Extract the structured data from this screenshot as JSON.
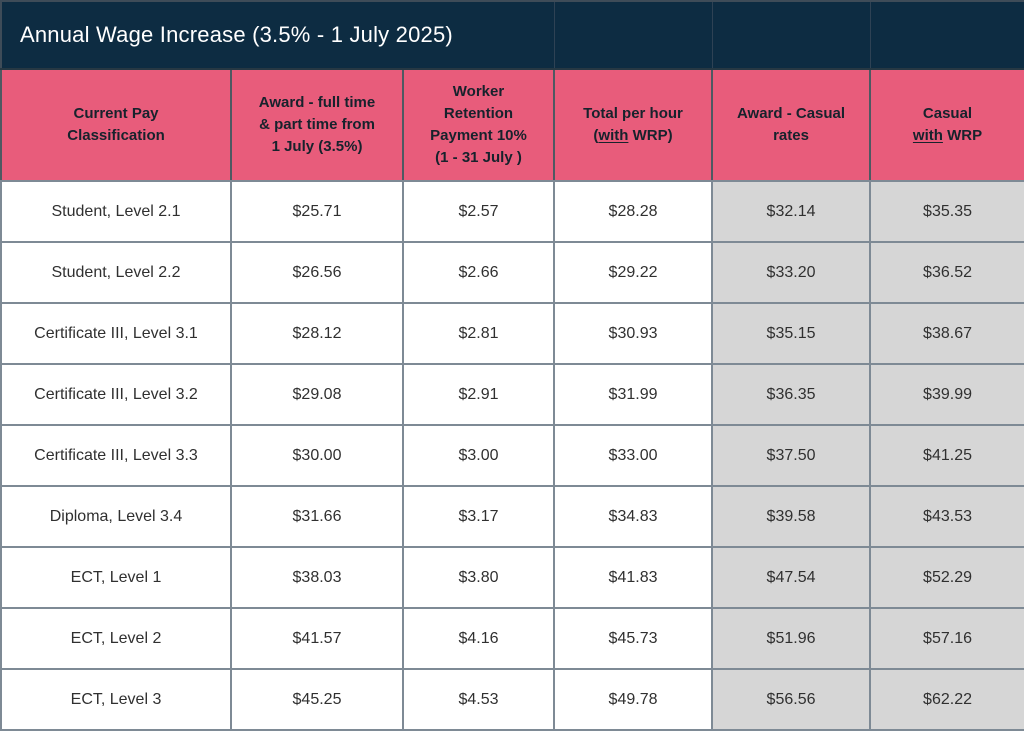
{
  "title": "Annual Wage Increase (3.5% - 1 July 2025)",
  "colors": {
    "navy": "#0d2c42",
    "navy_divider": "#2e4254",
    "pink": "#e85c7b",
    "header_text": "#17222c",
    "header_border": "#4d5962",
    "grid_border": "#7e8a95",
    "outer_border": "#3e4c58",
    "gray_cell": "#d6d6d6",
    "data_text": "#303030",
    "title_text": "#ffffff"
  },
  "table": {
    "columns": [
      {
        "id": "classification",
        "lines": [
          [
            {
              "t": "Current Pay"
            }
          ],
          [
            {
              "t": "Classification"
            }
          ]
        ]
      },
      {
        "id": "award-full-time",
        "lines": [
          [
            {
              "t": "Award - full time"
            }
          ],
          [
            {
              "t": "& part time from"
            }
          ],
          [
            {
              "t": "1 July (3.5%)"
            }
          ]
        ]
      },
      {
        "id": "worker-retention",
        "lines": [
          [
            {
              "t": "Worker"
            }
          ],
          [
            {
              "t": "Retention"
            }
          ],
          [
            {
              "t": "Payment 10%"
            }
          ],
          [
            {
              "t": "(1 - 31 July )"
            }
          ]
        ]
      },
      {
        "id": "total-with-wrp",
        "lines": [
          [
            {
              "t": "Total per hour"
            }
          ],
          [
            {
              "t": "("
            },
            {
              "t": "with",
              "u": true
            },
            {
              "t": " WRP)"
            }
          ]
        ]
      },
      {
        "id": "award-casual",
        "lines": [
          [
            {
              "t": "Award - Casual"
            }
          ],
          [
            {
              "t": "rates"
            }
          ]
        ]
      },
      {
        "id": "casual-with-wrp",
        "lines": [
          [
            {
              "t": "Casual"
            }
          ],
          [
            {
              "t": "with",
              "u": true
            },
            {
              "t": " WRP"
            }
          ]
        ]
      }
    ],
    "rows": [
      {
        "classification": "Student, Level 2.1",
        "values": [
          "$25.71",
          "$2.57",
          "$28.28",
          "$32.14",
          "$35.35"
        ]
      },
      {
        "classification": "Student, Level 2.2",
        "values": [
          "$26.56",
          "$2.66",
          "$29.22",
          "$33.20",
          "$36.52"
        ]
      },
      {
        "classification": "Certificate III, Level 3.1",
        "values": [
          "$28.12",
          "$2.81",
          "$30.93",
          "$35.15",
          "$38.67"
        ]
      },
      {
        "classification": "Certificate III, Level 3.2",
        "values": [
          "$29.08",
          "$2.91",
          "$31.99",
          "$36.35",
          "$39.99"
        ]
      },
      {
        "classification": "Certificate III, Level 3.3",
        "values": [
          "$30.00",
          "$3.00",
          "$33.00",
          "$37.50",
          "$41.25"
        ]
      },
      {
        "classification": "Diploma, Level 3.4",
        "values": [
          "$31.66",
          "$3.17",
          "$34.83",
          "$39.58",
          "$43.53"
        ]
      },
      {
        "classification": "ECT, Level 1",
        "values": [
          "$38.03",
          "$3.80",
          "$41.83",
          "$47.54",
          "$52.29"
        ]
      },
      {
        "classification": "ECT, Level 2",
        "values": [
          "$41.57",
          "$4.16",
          "$45.73",
          "$51.96",
          "$57.16"
        ]
      },
      {
        "classification": "ECT, Level 3",
        "values": [
          "$45.25",
          "$4.53",
          "$49.78",
          "$56.56",
          "$62.22"
        ]
      }
    ],
    "gray_columns_start_index": 3
  }
}
